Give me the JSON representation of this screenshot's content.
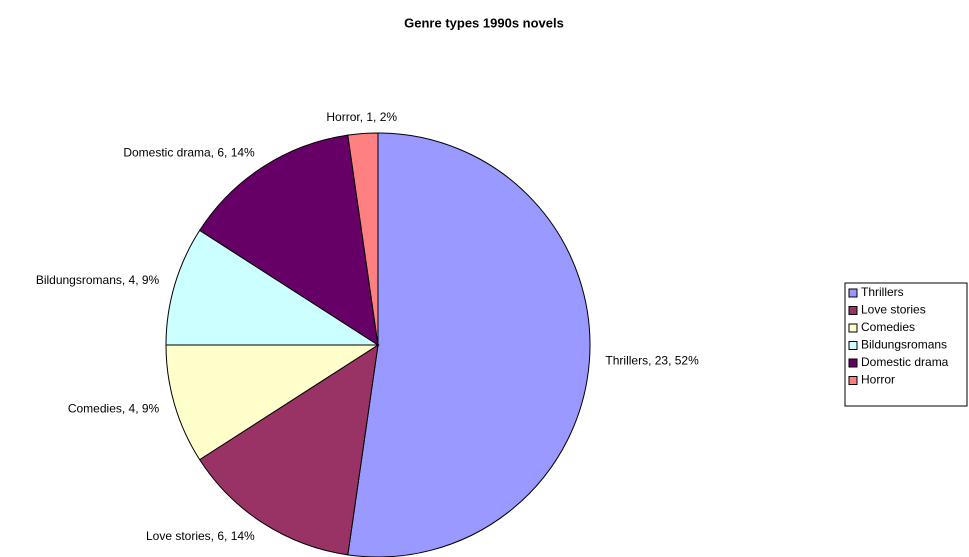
{
  "chart_data": {
    "type": "pie",
    "title": "Genre types 1990s novels",
    "categories": [
      "Thrillers",
      "Love stories",
      "Comedies",
      "Bildungsromans",
      "Domestic drama",
      "Horror"
    ],
    "values": [
      23,
      6,
      4,
      4,
      6,
      1
    ],
    "value_labels": [
      "Thrillers, 23, 52%",
      "Love stories, 6, 14%",
      "Comedies, 4, 9%",
      "Bildungsromans, 4, 9%",
      "Domestic drama, 6, 14%",
      "Horror, 1, 2%"
    ],
    "colors": [
      "#9999ff",
      "#993366",
      "#ffffcc",
      "#ccffff",
      "#660066",
      "#ff8080"
    ],
    "legend": "right"
  }
}
